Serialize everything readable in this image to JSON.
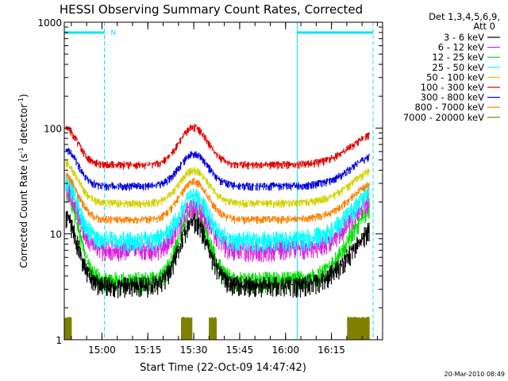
{
  "chart_data": {
    "type": "line",
    "title": "HESSI Observing Summary Count Rates, Corrected",
    "xlabel": "Start Time (22-Oct-09 14:47:42)",
    "ylabel_main": "Corrected Count Rate (s",
    "ylabel_sup1": "-1",
    "ylabel_mid": " detector",
    "ylabel_sup2": "-1",
    "ylabel_end": ")",
    "y_scale": "log",
    "ylim": [
      1,
      1000
    ],
    "xlim_minutes": [
      0,
      104
    ],
    "x_ticks": [
      {
        "min": 12.3,
        "label": "15:00"
      },
      {
        "min": 27.3,
        "label": "15:15"
      },
      {
        "min": 42.3,
        "label": "15:30"
      },
      {
        "min": 57.3,
        "label": "15:45"
      },
      {
        "min": 72.3,
        "label": "16:00"
      },
      {
        "min": 87.3,
        "label": "16:15"
      }
    ],
    "y_ticks": [
      {
        "v": 1,
        "label": "1"
      },
      {
        "v": 10,
        "label": "10"
      },
      {
        "v": 100,
        "label": "100"
      },
      {
        "v": 1000,
        "label": "1000"
      }
    ],
    "legend_header": [
      "Det 1,3,4,5,6,9,",
      "Att 0"
    ],
    "legend_position": "right",
    "series": [
      {
        "name": "3 - 6 keV",
        "color": "#000000",
        "edge": 15.5,
        "trough": 3.4,
        "peak": 14
      },
      {
        "name": "6 - 12 keV",
        "color": "#e020e0",
        "edge": 29,
        "trough": 7.5,
        "peak": 19.5
      },
      {
        "name": "12 - 25 keV",
        "color": "#00e000",
        "edge": 29,
        "trough": 3.8,
        "peak": 17.5
      },
      {
        "name": "25 - 50 keV",
        "color": "#00ffff",
        "edge": 34,
        "trough": 9.2,
        "peak": 24
      },
      {
        "name": "50 - 100 keV",
        "color": "#d2d200",
        "edge": 48,
        "trough": 20,
        "peak": 41
      },
      {
        "name": "100 - 300 keV",
        "color": "#e00000",
        "edge": 105,
        "trough": 46,
        "peak": 104
      },
      {
        "name": "300 - 800 keV",
        "color": "#0000e0",
        "edge": 65,
        "trough": 29,
        "peak": 58
      },
      {
        "name": "800 - 7000 keV",
        "color": "#ff8000",
        "edge": 37,
        "trough": 14,
        "peak": 32
      },
      {
        "name": "7000 - 20000 keV",
        "color": "#808000",
        "edge": 1.6,
        "trough": 1,
        "peak": 1.6
      }
    ],
    "night_intervals_minutes": [
      [
        0,
        13.1
      ],
      [
        76.1,
        100.9
      ]
    ],
    "night_label": "N",
    "saa_bursts_minutes": [
      [
        0.3,
        2.5
      ],
      [
        38.3,
        41.7
      ],
      [
        47.4,
        49.8
      ],
      [
        92.6,
        99.8
      ]
    ],
    "axis_color": "#000000",
    "night_color": "#00e5ff"
  },
  "footer": {
    "timestamp": "20-Mar-2010 08:49"
  }
}
